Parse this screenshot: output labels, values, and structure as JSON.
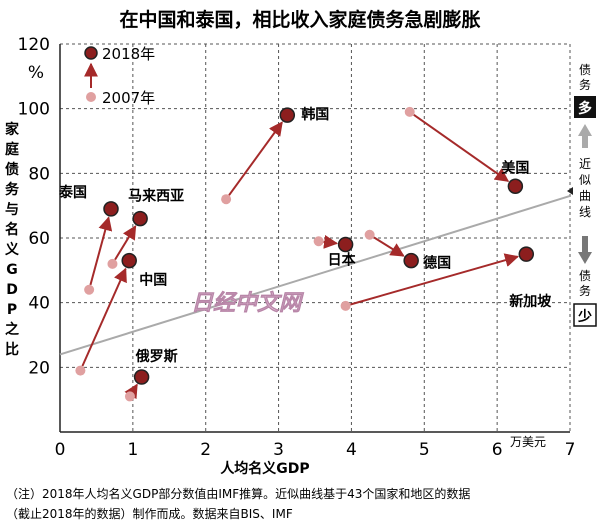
{
  "chart_data": {
    "type": "scatter",
    "title": "在中国和泰国，相比收入家庭债务急剧膨胀",
    "xlabel": "人均名义GDP",
    "xunit": "万美元",
    "ylabel": "家庭债务与名义GDP之比",
    "yunit": "%",
    "xlim": [
      0,
      7
    ],
    "ylim": [
      0,
      120
    ],
    "xticks": [
      "0",
      "1",
      "2",
      "3",
      "4",
      "5",
      "6",
      "7"
    ],
    "yticks": [
      "20",
      "40",
      "60",
      "80",
      "100",
      "120"
    ],
    "grid": true,
    "legend_position": "top-left",
    "series": [
      {
        "name": "2018年",
        "color": "#8c1e1e"
      },
      {
        "name": "2007年",
        "color": "#e0a0a0"
      }
    ],
    "countries": [
      {
        "name": "泰国",
        "x2007": 0.4,
        "y2007": 44,
        "x2018": 0.7,
        "y2018": 69
      },
      {
        "name": "马来西亚",
        "x2007": 0.72,
        "y2007": 52,
        "x2018": 1.1,
        "y2018": 66
      },
      {
        "name": "中国",
        "x2007": 0.28,
        "y2007": 19,
        "x2018": 0.95,
        "y2018": 53
      },
      {
        "name": "俄罗斯",
        "x2007": 0.96,
        "y2007": 11,
        "x2018": 1.12,
        "y2018": 17
      },
      {
        "name": "韩国",
        "x2007": 2.28,
        "y2007": 72,
        "x2018": 3.12,
        "y2018": 98
      },
      {
        "name": "美国",
        "x2007": 4.8,
        "y2007": 99,
        "x2018": 6.25,
        "y2018": 76
      },
      {
        "name": "日本",
        "x2007": 3.55,
        "y2007": 59,
        "x2018": 3.92,
        "y2018": 58
      },
      {
        "name": "德国",
        "x2007": 4.25,
        "y2007": 61,
        "x2018": 4.82,
        "y2018": 53
      },
      {
        "name": "新加坡",
        "x2007": 3.92,
        "y2007": 39,
        "x2018": 6.4,
        "y2018": 55
      }
    ],
    "trendline": {
      "label": "近似曲线",
      "y_at_x0": 24,
      "y_at_x7": 73,
      "color": "#aaaaaa"
    },
    "side_legend": {
      "top_label": "债务",
      "top_badge": "多",
      "bottom_label": "债务",
      "bottom_badge": "少"
    }
  },
  "watermark": "日经中文网",
  "footnote_line1": "（注）2018年人均名义GDP部分数值由IMF推算。近似曲线基于43个国家和地区的数据",
  "footnote_line2": "（截止2018年的数据）制作而成。数据来自BIS、IMF"
}
